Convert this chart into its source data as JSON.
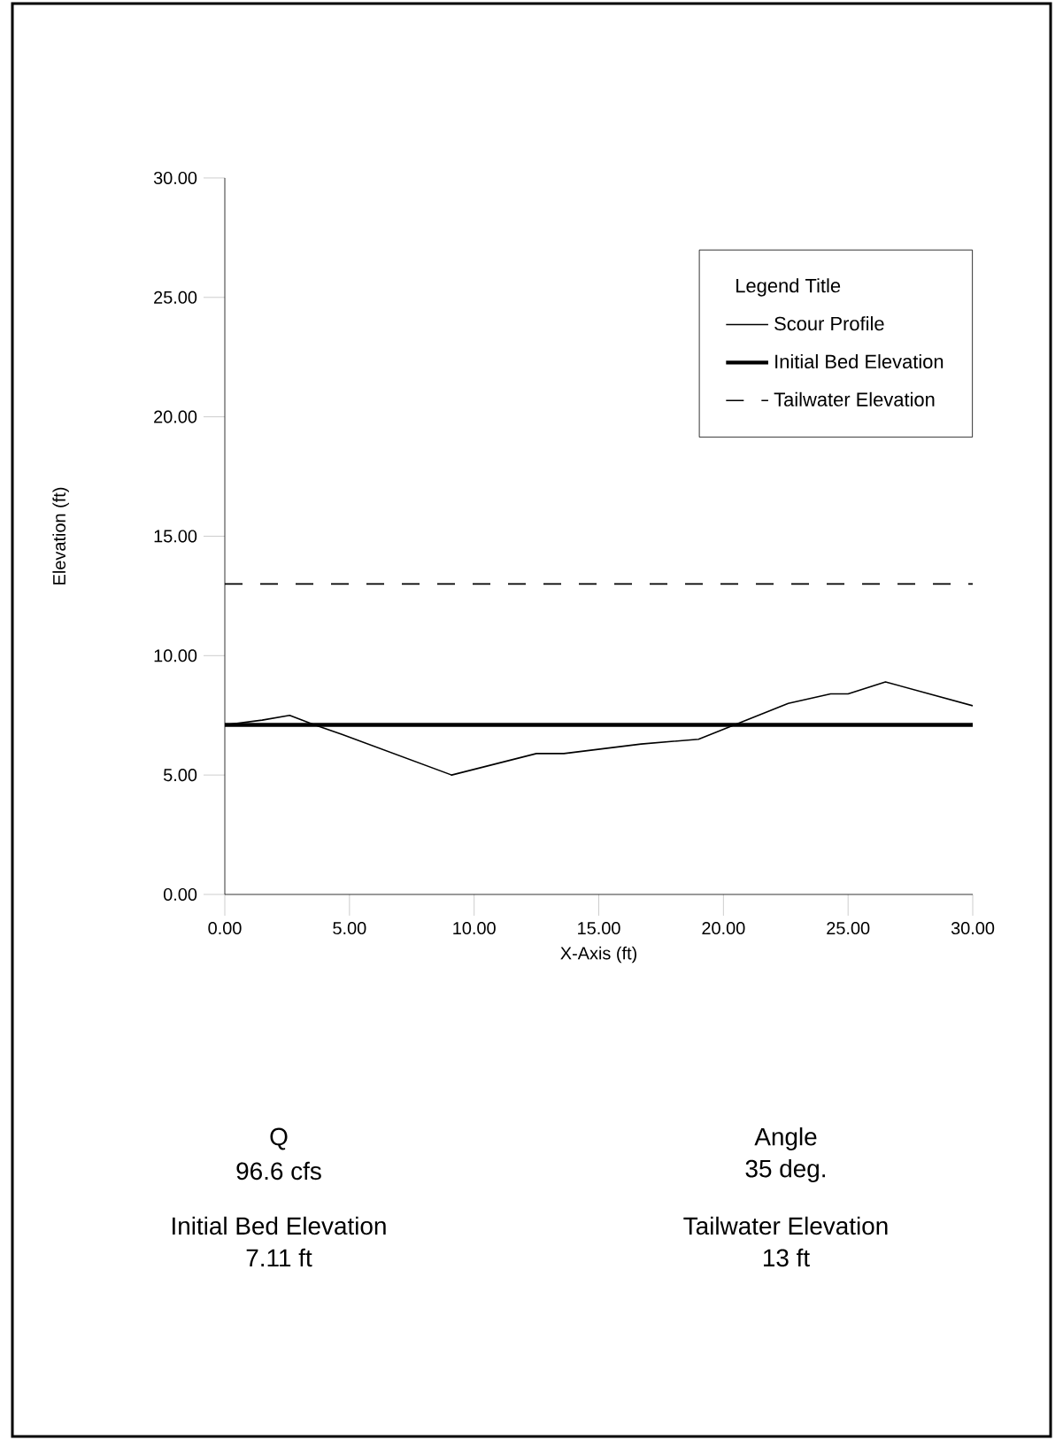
{
  "chart_data": {
    "type": "line",
    "xlabel": "X-Axis (ft)",
    "ylabel": "Elevation (ft)",
    "legend_title": "Legend Title",
    "xlim": [
      0,
      30
    ],
    "ylim": [
      0,
      30
    ],
    "xticks": [
      {
        "value": 0,
        "label": "0.00"
      },
      {
        "value": 5,
        "label": "5.00"
      },
      {
        "value": 10,
        "label": "10.00"
      },
      {
        "value": 15,
        "label": "15.00"
      },
      {
        "value": 20,
        "label": "20.00"
      },
      {
        "value": 25,
        "label": "25.00"
      },
      {
        "value": 30,
        "label": "30.00"
      }
    ],
    "yticks": [
      {
        "value": 0,
        "label": "0.00"
      },
      {
        "value": 5,
        "label": "5.00"
      },
      {
        "value": 10,
        "label": "10.00"
      },
      {
        "value": 15,
        "label": "15.00"
      },
      {
        "value": 20,
        "label": "20.00"
      },
      {
        "value": 25,
        "label": "25.00"
      },
      {
        "value": 30,
        "label": "30.00"
      }
    ],
    "series": [
      {
        "name": "Scour Profile",
        "color": "#000000",
        "line_style": "solid",
        "x": [
          0,
          1.5,
          2.6,
          3.6,
          4.7,
          9.1,
          12.5,
          13.6,
          16.7,
          19.0,
          20.2,
          22.6,
          24.3,
          25.0,
          26.5,
          30
        ],
        "values": [
          7.1,
          7.3,
          7.5,
          7.1,
          6.7,
          5.0,
          5.9,
          5.9,
          6.3,
          6.5,
          7.0,
          8.0,
          8.4,
          8.4,
          8.9,
          7.9
        ]
      },
      {
        "name": "Initial Bed Elevation",
        "color": "#000000",
        "line_style": "solid",
        "x": [
          0,
          30
        ],
        "values": [
          7.1,
          7.1
        ]
      },
      {
        "name": "Tailwater Elevation",
        "color": "#000000",
        "line_style": "dashed",
        "x": [
          0,
          30
        ],
        "values": [
          13,
          13
        ]
      }
    ],
    "legend": "top right",
    "grid": false,
    "annotations": [
      "Q",
      "96.6 cfs",
      "Angle",
      "35 deg.",
      "Initial Bed Elevation",
      "7.11 ft",
      "Tailwater Elevation",
      "13 ft"
    ]
  }
}
